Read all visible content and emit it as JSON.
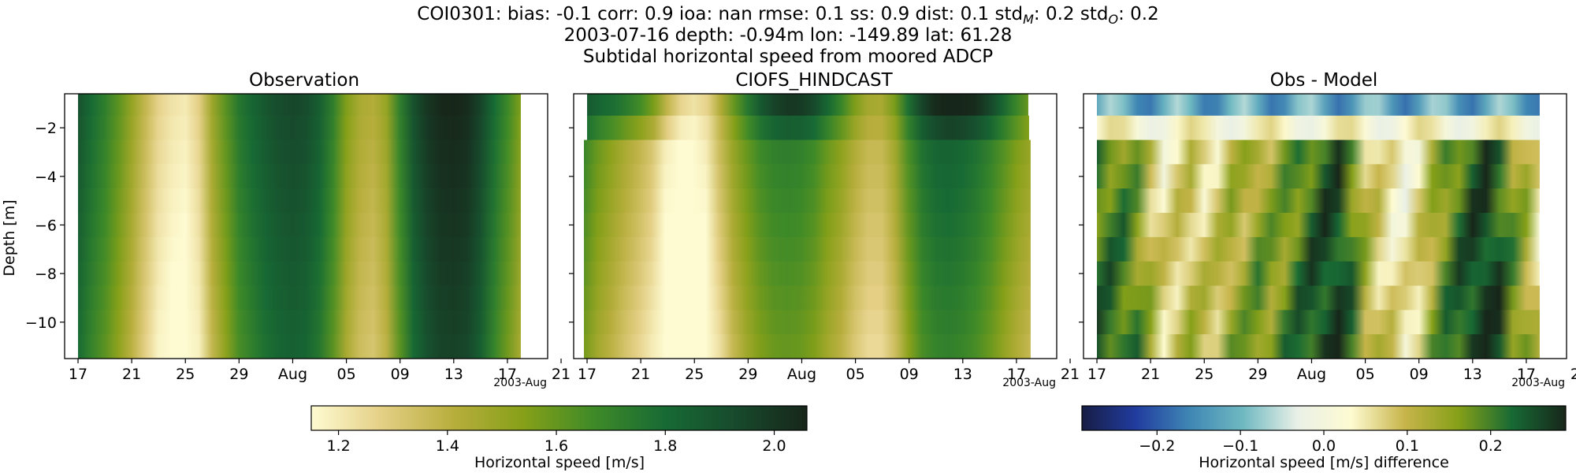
{
  "header": {
    "line1": "COI0301: bias: -0.1  corr: 0.9  ioa: nan  rmse: 0.1  ss: 0.9  dist: 0.1  stdₘ: 0.2  stdₒ: 0.2",
    "line1_parts": [
      "COI0301: bias: -0.1  corr: 0.9  ioa: nan  rmse: 0.1  ss: 0.9  dist: 0.1  std",
      "M",
      ": 0.2  std",
      "O",
      ": 0.2"
    ],
    "line2": "2003-07-16 depth: -0.94m lon: -149.89 lat: 61.28",
    "line3": "Subtidal horizontal speed from moored ADCP"
  },
  "chart_data": [
    {
      "type": "heatmap",
      "title": "Observation",
      "ylabel": "Depth [m]",
      "x_ticks": [
        "17",
        "21",
        "25",
        "29",
        "Aug",
        "05",
        "09",
        "13",
        "17",
        "21"
      ],
      "x_offset_label": "2003-Aug",
      "y_ticks": [
        -2,
        -4,
        -6,
        -8,
        -10
      ],
      "ylim": [
        -11.5,
        -0.6
      ],
      "x_range": [
        "2003-07-16",
        "2003-08-21"
      ],
      "data_x_range": [
        "2003-07-17",
        "2003-08-19"
      ],
      "depths": [
        -1.0,
        -2.0,
        -3.0,
        -4.0,
        -5.0,
        -6.0,
        -7.0,
        -8.0,
        -9.0,
        -10.0,
        -11.0
      ],
      "time_profile": [
        {
          "date": "2003-07-17",
          "speed": 1.9
        },
        {
          "date": "2003-07-18",
          "speed": 1.8
        },
        {
          "date": "2003-07-19",
          "speed": 1.72
        },
        {
          "date": "2003-07-20",
          "speed": 1.62
        },
        {
          "date": "2003-07-21",
          "speed": 1.5
        },
        {
          "date": "2003-07-22",
          "speed": 1.38
        },
        {
          "date": "2003-07-23",
          "speed": 1.27
        },
        {
          "date": "2003-07-24",
          "speed": 1.22
        },
        {
          "date": "2003-07-25",
          "speed": 1.2
        },
        {
          "date": "2003-07-26",
          "speed": 1.28
        },
        {
          "date": "2003-07-27",
          "speed": 1.48
        },
        {
          "date": "2003-07-28",
          "speed": 1.62
        },
        {
          "date": "2003-07-29",
          "speed": 1.75
        },
        {
          "date": "2003-07-30",
          "speed": 1.82
        },
        {
          "date": "2003-07-31",
          "speed": 1.88
        },
        {
          "date": "2003-08-01",
          "speed": 1.92
        },
        {
          "date": "2003-08-02",
          "speed": 1.94
        },
        {
          "date": "2003-08-03",
          "speed": 1.92
        },
        {
          "date": "2003-08-04",
          "speed": 1.85
        },
        {
          "date": "2003-08-05",
          "speed": 1.72
        },
        {
          "date": "2003-08-06",
          "speed": 1.55
        },
        {
          "date": "2003-08-07",
          "speed": 1.45
        },
        {
          "date": "2003-08-08",
          "speed": 1.42
        },
        {
          "date": "2003-08-09",
          "speed": 1.5
        },
        {
          "date": "2003-08-10",
          "speed": 1.72
        },
        {
          "date": "2003-08-11",
          "speed": 1.9
        },
        {
          "date": "2003-08-12",
          "speed": 2.0
        },
        {
          "date": "2003-08-13",
          "speed": 2.05
        },
        {
          "date": "2003-08-14",
          "speed": 2.06
        },
        {
          "date": "2003-08-15",
          "speed": 2.04
        },
        {
          "date": "2003-08-16",
          "speed": 1.95
        },
        {
          "date": "2003-08-17",
          "speed": 1.8
        },
        {
          "date": "2003-08-18",
          "speed": 1.68
        },
        {
          "date": "2003-08-19",
          "speed": 1.55
        }
      ]
    },
    {
      "type": "heatmap",
      "title": "CIOFS_HINDCAST",
      "x_ticks": [
        "17",
        "21",
        "25",
        "29",
        "Aug",
        "05",
        "09",
        "13",
        "17",
        "21"
      ],
      "x_offset_label": "2003-Aug",
      "ylim": [
        -11.5,
        -0.6
      ],
      "x_range": [
        "2003-07-16",
        "2003-08-21"
      ],
      "data_x_range": [
        "2003-07-17",
        "2003-08-19"
      ],
      "depths": [
        -1.0,
        -2.0,
        -3.0,
        -4.0,
        -5.0,
        -6.0,
        -7.0,
        -8.0,
        -9.0,
        -10.0,
        -11.0
      ],
      "surface_offset_by_depth": [
        0.25,
        0.12,
        0.0,
        0.0,
        0.0,
        0.0,
        0.0,
        0.0,
        0.0,
        0.0,
        0.0
      ],
      "time_profile": [
        {
          "date": "2003-07-17",
          "speed": 1.72
        },
        {
          "date": "2003-07-18",
          "speed": 1.62
        },
        {
          "date": "2003-07-19",
          "speed": 1.55
        },
        {
          "date": "2003-07-20",
          "speed": 1.48
        },
        {
          "date": "2003-07-21",
          "speed": 1.42
        },
        {
          "date": "2003-07-22",
          "speed": 1.35
        },
        {
          "date": "2003-07-23",
          "speed": 1.22
        },
        {
          "date": "2003-07-24",
          "speed": 1.15
        },
        {
          "date": "2003-07-25",
          "speed": 1.15
        },
        {
          "date": "2003-07-26",
          "speed": 1.22
        },
        {
          "date": "2003-07-27",
          "speed": 1.38
        },
        {
          "date": "2003-07-28",
          "speed": 1.52
        },
        {
          "date": "2003-07-29",
          "speed": 1.62
        },
        {
          "date": "2003-07-30",
          "speed": 1.7
        },
        {
          "date": "2003-07-31",
          "speed": 1.74
        },
        {
          "date": "2003-08-01",
          "speed": 1.75
        },
        {
          "date": "2003-08-02",
          "speed": 1.74
        },
        {
          "date": "2003-08-03",
          "speed": 1.7
        },
        {
          "date": "2003-08-04",
          "speed": 1.62
        },
        {
          "date": "2003-08-05",
          "speed": 1.55
        },
        {
          "date": "2003-08-06",
          "speed": 1.46
        },
        {
          "date": "2003-08-07",
          "speed": 1.4
        },
        {
          "date": "2003-08-08",
          "speed": 1.4
        },
        {
          "date": "2003-08-09",
          "speed": 1.5
        },
        {
          "date": "2003-08-10",
          "speed": 1.68
        },
        {
          "date": "2003-08-11",
          "speed": 1.8
        },
        {
          "date": "2003-08-12",
          "speed": 1.85
        },
        {
          "date": "2003-08-13",
          "speed": 1.86
        },
        {
          "date": "2003-08-14",
          "speed": 1.84
        },
        {
          "date": "2003-08-15",
          "speed": 1.8
        },
        {
          "date": "2003-08-16",
          "speed": 1.74
        },
        {
          "date": "2003-08-17",
          "speed": 1.66
        },
        {
          "date": "2003-08-18",
          "speed": 1.58
        },
        {
          "date": "2003-08-19",
          "speed": 1.52
        }
      ]
    },
    {
      "type": "heatmap",
      "title": "Obs - Model",
      "x_ticks": [
        "17",
        "21",
        "25",
        "29",
        "Aug",
        "05",
        "09",
        "13",
        "17",
        "21"
      ],
      "x_offset_label": "2003-Aug",
      "ylim": [
        -11.5,
        -0.6
      ],
      "x_range": [
        "2003-07-16",
        "2003-08-21"
      ],
      "data_x_range": [
        "2003-07-17",
        "2003-08-19"
      ],
      "depths": [
        -1.0,
        -2.0,
        -3.0,
        -4.0,
        -5.0,
        -6.0,
        -7.0,
        -8.0,
        -9.0,
        -10.0,
        -11.0
      ],
      "difference": "observation minus model"
    }
  ],
  "colorbars": [
    {
      "label": "Horizontal speed [m/s]",
      "ticks": [
        "1.2",
        "1.4",
        "1.6",
        "1.8",
        "2.0"
      ],
      "range": [
        1.15,
        2.06
      ],
      "colors": [
        "#fefbd2",
        "#e4cf85",
        "#b8ae3d",
        "#86a018",
        "#3e8a28",
        "#176a34",
        "#174a2c",
        "#17261a"
      ]
    },
    {
      "label": "Horizontal speed [m/s] difference",
      "ticks": [
        "−0.2",
        "−0.1",
        "0.0",
        "0.1",
        "0.2"
      ],
      "range": [
        -0.29,
        0.29
      ],
      "colors": [
        "#171d44",
        "#213c9f",
        "#3f86b4",
        "#6fb9c1",
        "#e9f0e7",
        "#fefbd2",
        "#c8b54b",
        "#86a018",
        "#176a34",
        "#17261a"
      ]
    }
  ]
}
